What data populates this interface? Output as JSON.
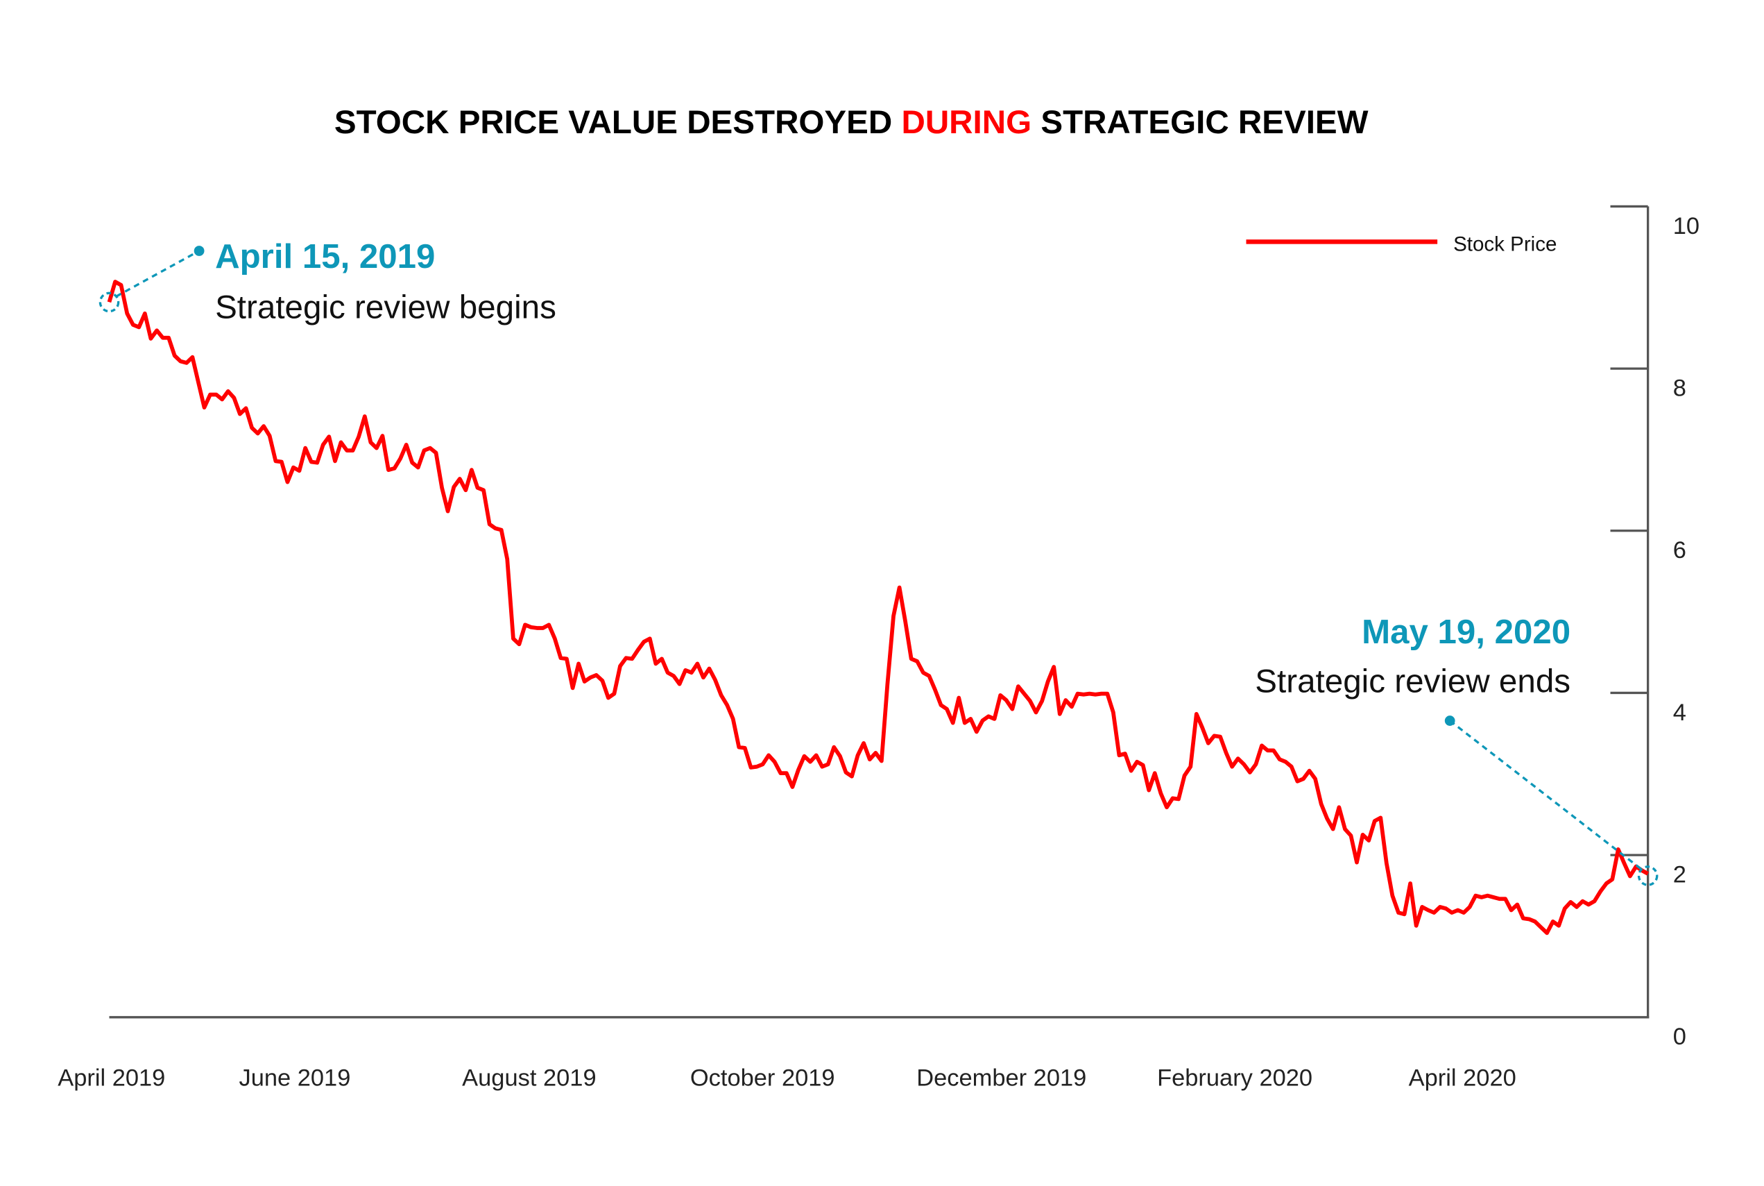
{
  "chart_data": {
    "type": "line",
    "title": {
      "part1": "STOCK PRICE VALUE DESTROYED ",
      "highlight": "DURING",
      "part2": " STRATEGIC REVIEW"
    },
    "xlabel": "",
    "ylabel": "",
    "x_tick_labels": [
      "April 2019",
      "June 2019",
      "August 2019",
      "October 2019",
      "December 2019",
      "February 2020",
      "April 2020"
    ],
    "y_tick_labels": [
      "0",
      "2",
      "4",
      "6",
      "8",
      "10"
    ],
    "y_ticks": [
      0,
      2,
      4,
      6,
      8,
      10
    ],
    "ylim": [
      0,
      10
    ],
    "y_axis_position": "right",
    "grid": false,
    "legend_position": "top-right",
    "x_range": [
      "2019-04-15",
      "2020-05-19"
    ],
    "series": [
      {
        "name": "Stock Price",
        "color": "#ff0000",
        "values": [
          8.82,
          9.07,
          9.03,
          8.68,
          8.54,
          8.51,
          8.68,
          8.37,
          8.47,
          8.38,
          8.38,
          8.16,
          8.09,
          8.07,
          8.14,
          7.83,
          7.52,
          7.68,
          7.68,
          7.62,
          7.72,
          7.64,
          7.44,
          7.51,
          7.27,
          7.2,
          7.29,
          7.17,
          6.86,
          6.85,
          6.6,
          6.78,
          6.74,
          7.02,
          6.85,
          6.84,
          7.06,
          7.16,
          6.86,
          7.09,
          6.99,
          6.99,
          7.16,
          7.41,
          7.09,
          7.02,
          7.17,
          6.75,
          6.77,
          6.89,
          7.06,
          6.84,
          6.78,
          6.99,
          7.02,
          6.96,
          6.53,
          6.24,
          6.54,
          6.64,
          6.5,
          6.75,
          6.53,
          6.5,
          6.08,
          6.03,
          6.01,
          5.65,
          4.67,
          4.6,
          4.84,
          4.81,
          4.8,
          4.8,
          4.84,
          4.67,
          4.43,
          4.42,
          4.06,
          4.36,
          4.14,
          4.19,
          4.22,
          4.15,
          3.94,
          3.99,
          4.33,
          4.43,
          4.42,
          4.53,
          4.63,
          4.67,
          4.36,
          4.42,
          4.25,
          4.21,
          4.11,
          4.28,
          4.25,
          4.36,
          4.19,
          4.3,
          4.16,
          3.97,
          3.85,
          3.68,
          3.33,
          3.32,
          3.08,
          3.09,
          3.12,
          3.23,
          3.15,
          3.01,
          3.01,
          2.84,
          3.05,
          3.22,
          3.15,
          3.23,
          3.09,
          3.12,
          3.33,
          3.22,
          3.02,
          2.97,
          3.23,
          3.38,
          3.18,
          3.26,
          3.16,
          4.11,
          4.95,
          5.3,
          4.88,
          4.42,
          4.39,
          4.25,
          4.21,
          4.04,
          3.85,
          3.8,
          3.63,
          3.94,
          3.63,
          3.68,
          3.52,
          3.66,
          3.71,
          3.68,
          3.97,
          3.91,
          3.8,
          4.08,
          3.99,
          3.9,
          3.76,
          3.9,
          4.14,
          4.32,
          3.74,
          3.91,
          3.83,
          3.99,
          3.98,
          3.99,
          3.98,
          3.99,
          3.99,
          3.76,
          3.23,
          3.25,
          3.04,
          3.15,
          3.11,
          2.8,
          3.01,
          2.76,
          2.59,
          2.7,
          2.69,
          2.98,
          3.09,
          3.74,
          3.57,
          3.38,
          3.47,
          3.46,
          3.26,
          3.09,
          3.19,
          3.12,
          3.02,
          3.12,
          3.35,
          3.29,
          3.29,
          3.18,
          3.15,
          3.09,
          2.91,
          2.94,
          3.04,
          2.94,
          2.63,
          2.45,
          2.32,
          2.59,
          2.32,
          2.24,
          1.91,
          2.25,
          2.18,
          2.42,
          2.46,
          1.9,
          1.5,
          1.29,
          1.27,
          1.65,
          1.13,
          1.36,
          1.32,
          1.29,
          1.36,
          1.34,
          1.29,
          1.32,
          1.29,
          1.36,
          1.5,
          1.48,
          1.5,
          1.48,
          1.46,
          1.46,
          1.32,
          1.39,
          1.22,
          1.21,
          1.18,
          1.11,
          1.04,
          1.18,
          1.13,
          1.34,
          1.42,
          1.36,
          1.43,
          1.39,
          1.43,
          1.55,
          1.65,
          1.7,
          2.07,
          1.9,
          1.74,
          1.86,
          1.81,
          1.77
        ]
      }
    ],
    "annotations": [
      {
        "date": "April 15, 2019",
        "text": "Strategic review begins",
        "color": "#0e97b8"
      },
      {
        "date": "May 19, 2020",
        "text": "Strategic review ends",
        "color": "#0e97b8"
      }
    ]
  }
}
